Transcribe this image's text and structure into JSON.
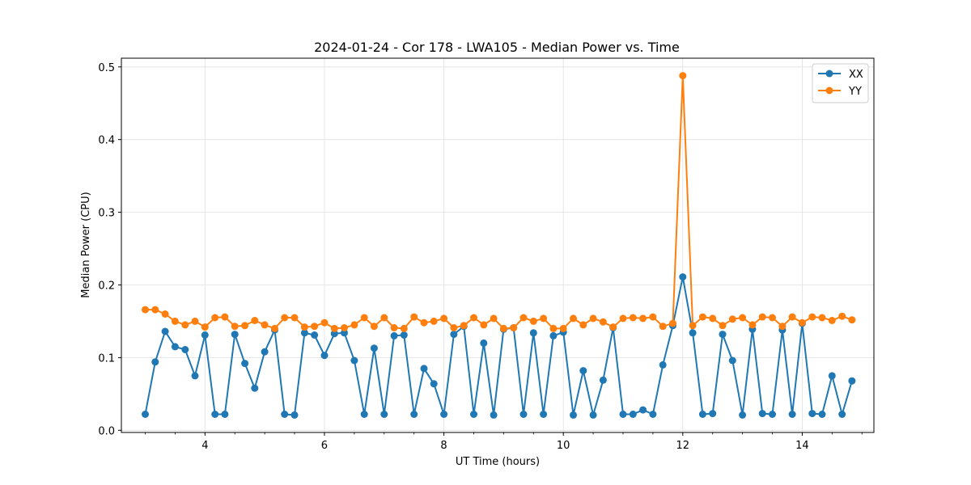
{
  "chart_data": {
    "type": "line",
    "title": "2024-01-24 - Cor 178 - LWA105 - Median Power vs. Time",
    "xlabel": "UT Time (hours)",
    "ylabel": "Median Power (CPU)",
    "xlim": [
      2.6,
      15.2
    ],
    "ylim": [
      -0.003,
      0.512
    ],
    "xticks": [
      4,
      6,
      8,
      10,
      12,
      14
    ],
    "yticks": [
      0.0,
      0.1,
      0.2,
      0.3,
      0.4,
      0.5
    ],
    "xtick_labels": [
      "4",
      "6",
      "8",
      "10",
      "12",
      "14"
    ],
    "ytick_labels": [
      "0.0",
      "0.1",
      "0.2",
      "0.3",
      "0.4",
      "0.5"
    ],
    "grid": true,
    "legend_position": "top-right",
    "x": [
      3.0,
      3.167,
      3.333,
      3.5,
      3.667,
      3.833,
      4.0,
      4.167,
      4.333,
      4.5,
      4.667,
      4.833,
      5.0,
      5.167,
      5.333,
      5.5,
      5.667,
      5.833,
      6.0,
      6.167,
      6.333,
      6.5,
      6.667,
      6.833,
      7.0,
      7.167,
      7.333,
      7.5,
      7.667,
      7.833,
      8.0,
      8.167,
      8.333,
      8.5,
      8.667,
      8.833,
      9.0,
      9.167,
      9.333,
      9.5,
      9.667,
      9.833,
      10.0,
      10.167,
      10.333,
      10.5,
      10.667,
      10.833,
      11.0,
      11.167,
      11.333,
      11.5,
      11.667,
      11.833,
      12.0,
      12.167,
      12.333,
      12.5,
      12.667,
      12.833,
      13.0,
      13.167,
      13.333,
      13.5,
      13.667,
      13.833,
      14.0,
      14.167,
      14.333,
      14.5,
      14.667,
      14.833
    ],
    "series": [
      {
        "name": "XX",
        "color": "#1f77b4",
        "values": [
          0.022,
          0.094,
          0.136,
          0.115,
          0.111,
          0.075,
          0.131,
          0.022,
          0.022,
          0.132,
          0.092,
          0.058,
          0.108,
          0.138,
          0.022,
          0.021,
          0.134,
          0.131,
          0.103,
          0.133,
          0.134,
          0.096,
          0.022,
          0.113,
          0.022,
          0.13,
          0.131,
          0.022,
          0.085,
          0.064,
          0.022,
          0.132,
          0.143,
          0.022,
          0.12,
          0.021,
          0.139,
          0.141,
          0.022,
          0.134,
          0.022,
          0.13,
          0.135,
          0.021,
          0.082,
          0.021,
          0.069,
          0.141,
          0.022,
          0.022,
          0.028,
          0.022,
          0.09,
          0.144,
          0.211,
          0.134,
          0.022,
          0.023,
          0.132,
          0.096,
          0.021,
          0.139,
          0.023,
          0.022,
          0.138,
          0.022,
          0.147,
          0.023,
          0.022,
          0.075,
          0.022,
          0.068
        ]
      },
      {
        "name": "YY",
        "color": "#ff7f0e",
        "values": [
          0.166,
          0.166,
          0.16,
          0.15,
          0.145,
          0.15,
          0.142,
          0.155,
          0.156,
          0.143,
          0.144,
          0.151,
          0.145,
          0.14,
          0.155,
          0.155,
          0.142,
          0.143,
          0.148,
          0.14,
          0.141,
          0.145,
          0.155,
          0.143,
          0.155,
          0.141,
          0.14,
          0.156,
          0.148,
          0.15,
          0.154,
          0.141,
          0.144,
          0.155,
          0.145,
          0.154,
          0.14,
          0.141,
          0.155,
          0.15,
          0.154,
          0.14,
          0.14,
          0.154,
          0.145,
          0.154,
          0.149,
          0.142,
          0.154,
          0.155,
          0.154,
          0.156,
          0.143,
          0.147,
          0.488,
          0.144,
          0.156,
          0.154,
          0.144,
          0.153,
          0.155,
          0.145,
          0.156,
          0.155,
          0.143,
          0.156,
          0.148,
          0.156,
          0.155,
          0.151,
          0.157,
          0.152
        ]
      }
    ]
  }
}
